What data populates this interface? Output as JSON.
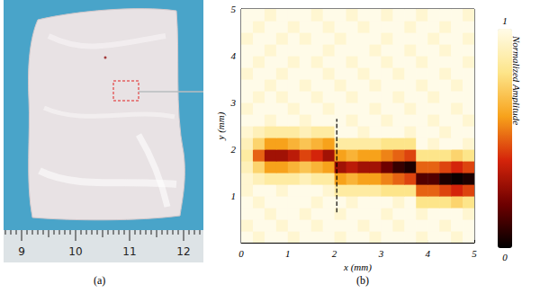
{
  "panel_labels": [
    "(a)",
    "(b)"
  ],
  "photo": {
    "ruler_labels": [
      "9",
      "10",
      "11",
      "12"
    ]
  },
  "chart_data": {
    "type": "heatmap",
    "x_label": "x (mm)",
    "y_label": "y (mm)",
    "xlim": [
      0,
      5
    ],
    "ylim": [
      0,
      5
    ],
    "xticks": [
      0,
      1,
      2,
      3,
      4,
      5
    ],
    "yticks": [
      1,
      2,
      3,
      4,
      5
    ],
    "x_edges": [
      0,
      0.25,
      0.5,
      0.75,
      1,
      1.25,
      1.5,
      1.75,
      2,
      2.25,
      2.5,
      2.75,
      3,
      3.25,
      3.5,
      3.75,
      4,
      4.25,
      4.5,
      4.75,
      5
    ],
    "y_edges": [
      0,
      0.25,
      0.5,
      0.75,
      1,
      1.25,
      1.5,
      1.75,
      2,
      2.25,
      2.5,
      2.75,
      3,
      3.25,
      3.5,
      3.75,
      4,
      4.25,
      4.5,
      4.75,
      5
    ],
    "cells": [
      [
        1,
        0.95,
        1,
        1,
        0.95,
        1,
        1,
        1,
        0.95,
        1,
        1,
        0.95,
        1,
        1,
        1,
        0.95,
        1,
        1,
        0.95,
        1
      ],
      [
        0.95,
        1,
        1,
        0.95,
        1,
        1,
        0.95,
        1,
        1,
        1,
        0.95,
        1,
        1,
        0.95,
        1,
        1,
        1,
        0.95,
        1,
        1
      ],
      [
        1,
        1,
        0.95,
        1,
        1,
        0.95,
        1,
        1,
        0.95,
        1,
        1,
        1,
        0.95,
        1,
        1,
        0.95,
        1,
        1,
        1,
        0.95
      ],
      [
        1,
        0.95,
        1,
        1,
        1,
        1,
        0.95,
        1,
        1,
        0.95,
        1,
        1,
        1,
        0.95,
        1,
        0.8,
        0.8,
        0.8,
        0.75,
        0.8
      ],
      [
        0.95,
        1,
        1,
        0.95,
        1,
        1,
        1,
        0.95,
        0.85,
        0.85,
        0.85,
        0.85,
        0.8,
        0.8,
        0.8,
        0.5,
        0.5,
        0.45,
        0.4,
        0.45
      ],
      [
        0.95,
        0.9,
        0.85,
        0.85,
        0.85,
        0.9,
        0.85,
        0.85,
        0.6,
        0.65,
        0.6,
        0.6,
        0.55,
        0.5,
        0.45,
        0.15,
        0.15,
        0.05,
        0.02,
        0.05
      ],
      [
        0.9,
        0.75,
        0.6,
        0.6,
        0.65,
        0.7,
        0.65,
        0.6,
        0.3,
        0.35,
        0.3,
        0.3,
        0.2,
        0.1,
        0.05,
        0.5,
        0.5,
        0.45,
        0.4,
        0.45
      ],
      [
        0.85,
        0.5,
        0.3,
        0.3,
        0.35,
        0.45,
        0.4,
        0.3,
        0.6,
        0.65,
        0.6,
        0.6,
        0.55,
        0.5,
        0.45,
        0.8,
        0.8,
        0.8,
        0.75,
        0.8
      ],
      [
        0.9,
        0.75,
        0.6,
        0.6,
        0.65,
        0.7,
        0.65,
        0.6,
        0.85,
        0.85,
        0.85,
        0.85,
        0.8,
        0.8,
        0.8,
        1,
        0.95,
        1,
        1,
        0.95
      ],
      [
        0.95,
        0.9,
        0.85,
        0.85,
        0.85,
        0.9,
        0.85,
        0.85,
        1,
        1,
        0.95,
        1,
        1,
        1,
        0.95,
        1,
        1,
        0.95,
        1,
        1
      ],
      [
        1,
        1,
        0.95,
        1,
        1,
        0.95,
        1,
        1,
        1,
        0.95,
        1,
        1,
        0.95,
        1,
        1,
        1,
        0.95,
        1,
        1,
        0.95
      ],
      [
        0.95,
        1,
        1,
        1,
        0.95,
        1,
        1,
        0.95,
        1,
        1,
        1,
        0.95,
        1,
        1,
        0.95,
        1,
        1,
        1,
        0.95,
        1
      ],
      [
        1,
        0.95,
        1,
        0.95,
        1,
        1,
        0.95,
        1,
        1,
        0.95,
        1,
        1,
        1,
        0.95,
        1,
        1,
        0.95,
        1,
        1,
        1
      ],
      [
        1,
        1,
        0.95,
        1,
        1,
        0.95,
        1,
        1,
        0.95,
        1,
        1,
        0.95,
        1,
        1,
        1,
        0.95,
        1,
        1,
        0.95,
        1
      ],
      [
        0.95,
        1,
        1,
        0.95,
        1,
        1,
        1,
        0.95,
        1,
        1,
        0.95,
        1,
        1,
        0.95,
        1,
        1,
        1,
        0.95,
        1,
        1
      ],
      [
        1,
        0.95,
        1,
        1,
        0.95,
        1,
        0.95,
        1,
        1,
        0.95,
        1,
        1,
        0.95,
        1,
        1,
        0.95,
        1,
        1,
        1,
        0.95
      ],
      [
        1,
        1,
        0.95,
        1,
        1,
        1,
        1,
        0.95,
        1,
        1,
        1,
        0.95,
        1,
        1,
        0.95,
        1,
        1,
        0.95,
        1,
        1
      ],
      [
        0.95,
        1,
        1,
        0.95,
        1,
        0.95,
        1,
        1,
        0.95,
        1,
        1,
        1,
        0.95,
        1,
        1,
        1,
        0.95,
        1,
        1,
        0.95
      ],
      [
        1,
        0.95,
        1,
        1,
        0.95,
        1,
        1,
        0.95,
        1,
        1,
        0.95,
        1,
        1,
        1,
        0.95,
        1,
        1,
        0.95,
        1,
        1
      ],
      [
        1,
        1,
        0.95,
        1,
        1,
        1,
        0.95,
        1,
        1,
        0.95,
        1,
        1,
        0.95,
        1,
        1,
        0.95,
        1,
        1,
        1,
        0.95
      ]
    ],
    "colorbar": {
      "label": "Normalized Amplitude",
      "range": [
        0,
        1
      ],
      "ticks": [
        0,
        1
      ]
    },
    "annotations": [
      {
        "type": "line",
        "line_style": "dashed",
        "color": "#000000",
        "x": [
          2.05,
          2.05
        ],
        "y": [
          0.65,
          2.65
        ]
      }
    ]
  }
}
